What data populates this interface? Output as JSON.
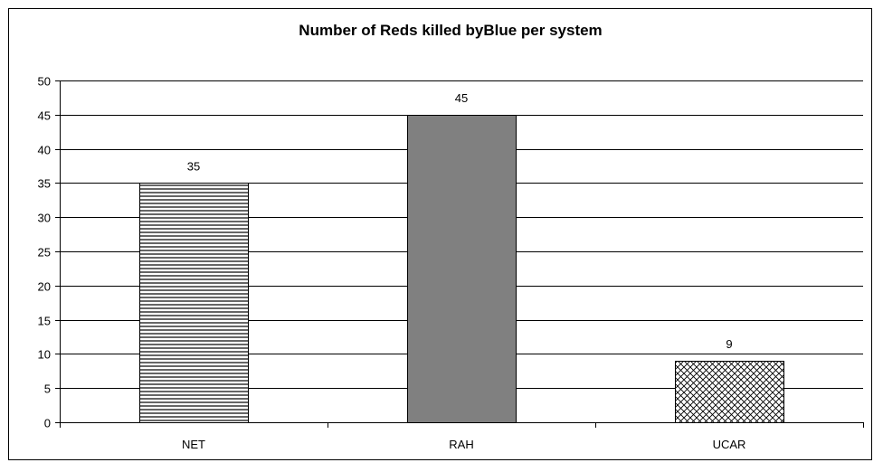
{
  "chart_data": {
    "type": "bar",
    "title": "Number of Reds killed byBlue per system",
    "categories": [
      "NET",
      "RAH",
      "UCAR"
    ],
    "values": [
      35,
      45,
      9
    ],
    "data_labels": [
      "35",
      "45",
      "9"
    ],
    "ylim": [
      0,
      50
    ],
    "y_ticks": [
      "0",
      "5",
      "10",
      "15",
      "20",
      "25",
      "30",
      "35",
      "40",
      "45",
      "50"
    ],
    "xlabel": "",
    "ylabel": "",
    "grid": true,
    "legend": "none",
    "bar_fills": [
      "horizontal-lines",
      "solid-gray",
      "crosshatch"
    ],
    "colors": {
      "bar_solid": "#808080",
      "hatch": "#000000",
      "grid": "#000000"
    }
  }
}
